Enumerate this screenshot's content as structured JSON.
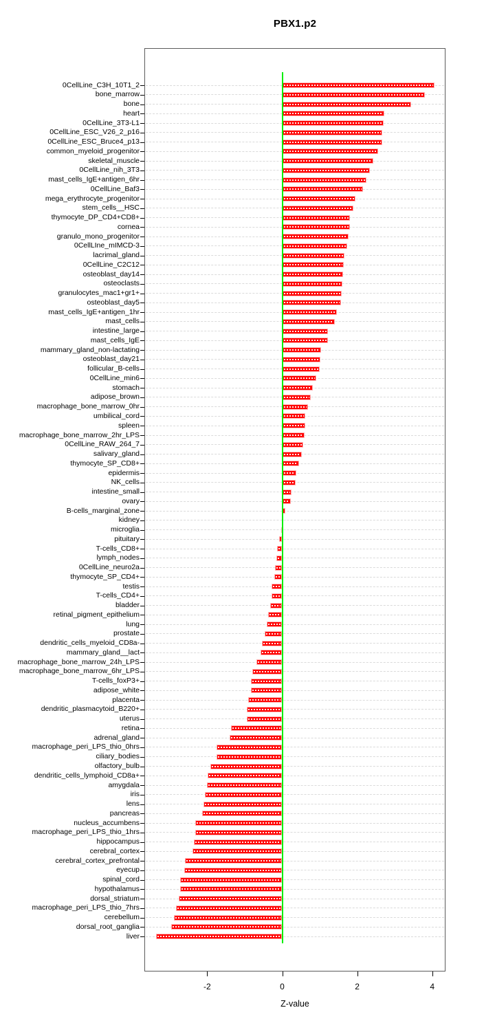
{
  "chart_data": {
    "type": "bar",
    "orientation": "horizontal",
    "title": "PBX1.p2",
    "xlabel": "Z-value",
    "ylabel": "",
    "xlim": [
      -3.67,
      4.35
    ],
    "xticks": [
      -2,
      0,
      2,
      4
    ],
    "grid": "dashed-horizontal-per-row",
    "legend": "none",
    "bar_color": "#ff0000",
    "bar_inner_dash_color": "#ffffff",
    "zero_line_color": "#00ee00",
    "categories": [
      "0CellLine_C3H_10T1_2",
      "bone_marrow",
      "bone",
      "heart",
      "0CellLine_3T3-L1",
      "0CellLine_ESC_V26_2_p16",
      "0CellLine_ESC_Bruce4_p13",
      "common_myeloid_progenitor",
      "skeletal_muscle",
      "0CellLine_nih_3T3",
      "mast_cells_IgE+antigen_6hr",
      "0CellLine_Baf3",
      "mega_erythrocyte_progenitor",
      "stem_cells__HSC",
      "thymocyte_DP_CD4+CD8+",
      "cornea",
      "granulo_mono_progenitor",
      "0CellLIne_mIMCD-3",
      "lacrimal_gland",
      "0CellLine_C2C12",
      "osteoblast_day14",
      "osteoclasts",
      "granulocytes_mac1+gr1+",
      "osteoblast_day5",
      "mast_cells_IgE+antigen_1hr",
      "mast_cells",
      "intestine_large",
      "mast_cells_IgE",
      "mammary_gland_non-lactating",
      "osteoblast_day21",
      "follicular_B-cells",
      "0CellLine_min6",
      "stomach",
      "adipose_brown",
      "macrophage_bone_marrow_0hr",
      "umbilical_cord",
      "spleen",
      "macrophage_bone_marrow_2hr_LPS",
      "0CellLine_RAW_264_7",
      "salivary_gland",
      "thymocyte_SP_CD8+",
      "epidermis",
      "NK_cells",
      "intestine_small",
      "ovary",
      "B-cells_marginal_zone",
      "kidney",
      "microglia",
      "pituitary",
      "T-cells_CD8+",
      "lymph_nodes",
      "0CellLine_neuro2a",
      "thymocyte_SP_CD4+",
      "testis",
      "T-cells_CD4+",
      "bladder",
      "retinal_pigment_epithelium",
      "lung",
      "prostate",
      "dendritic_cells_myeloid_CD8a-",
      "mammary_gland__lact",
      "macrophage_bone_marrow_24h_LPS",
      "macrophage_bone_marrow_6hr_LPS",
      "T-cells_foxP3+",
      "adipose_white",
      "placenta",
      "dendritic_plasmacytoid_B220+",
      "uterus",
      "retina",
      "adrenal_gland",
      "macrophage_peri_LPS_thio_0hrs",
      "ciliary_bodies",
      "olfactory_bulb",
      "dendritic_cells_lymphoid_CD8a+",
      "amygdala",
      "iris",
      "lens",
      "pancreas",
      "nucleus_accumbens",
      "macrophage_peri_LPS_thio_1hrs",
      "hippocampus",
      "cerebral_cortex",
      "cerebral_cortex_prefrontal",
      "eyecup",
      "spinal_cord",
      "hypothalamus",
      "dorsal_striatum",
      "macrophage_peri_LPS_thio_7hrs",
      "cerebellum",
      "dorsal_root_ganglia",
      "liver"
    ],
    "values": [
      4.06,
      3.81,
      3.44,
      2.72,
      2.71,
      2.67,
      2.66,
      2.56,
      2.42,
      2.34,
      2.24,
      2.15,
      1.96,
      1.9,
      1.81,
      1.8,
      1.76,
      1.73,
      1.65,
      1.64,
      1.62,
      1.6,
      1.59,
      1.57,
      1.45,
      1.41,
      1.22,
      1.21,
      1.03,
      1.01,
      1.0,
      0.91,
      0.81,
      0.76,
      0.69,
      0.62,
      0.61,
      0.6,
      0.56,
      0.53,
      0.45,
      0.37,
      0.36,
      0.24,
      0.23,
      0.08,
      -0.01,
      -0.03,
      -0.09,
      -0.14,
      -0.15,
      -0.19,
      -0.21,
      -0.28,
      -0.29,
      -0.32,
      -0.37,
      -0.41,
      -0.46,
      -0.54,
      -0.57,
      -0.69,
      -0.8,
      -0.83,
      -0.84,
      -0.91,
      -0.94,
      -0.94,
      -1.36,
      -1.4,
      -1.75,
      -1.75,
      -1.92,
      -1.98,
      -2.01,
      -2.06,
      -2.09,
      -2.13,
      -2.31,
      -2.32,
      -2.35,
      -2.39,
      -2.59,
      -2.61,
      -2.72,
      -2.73,
      -2.75,
      -2.84,
      -2.89,
      -2.96,
      -3.37
    ]
  }
}
